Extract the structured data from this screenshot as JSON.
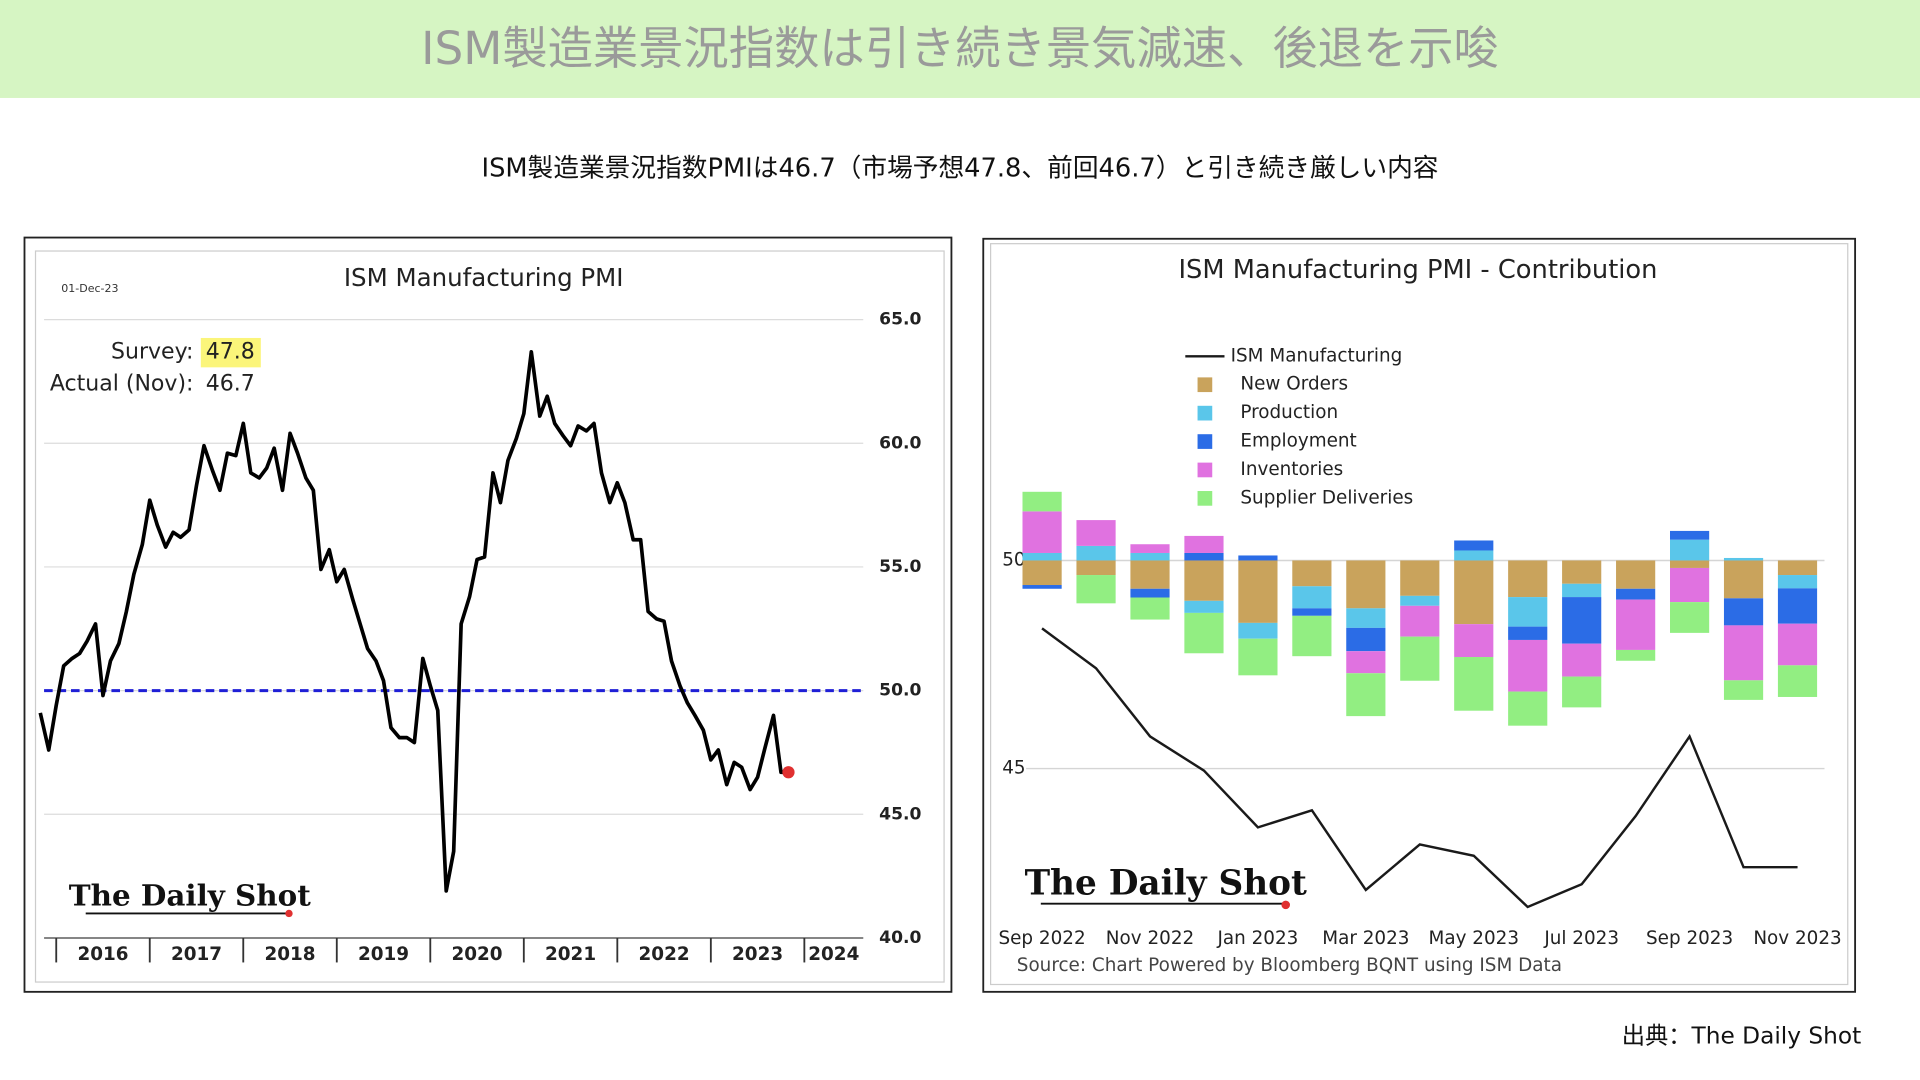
{
  "header": {
    "title": "ISM製造業景況指数は引き続き景気減速、後退を示唆",
    "subtitle": "ISM製造業景況指数PMIは46.7（市場予想47.8、前回46.7）と引き続き厳しい内容"
  },
  "footer": {
    "source": "出典：The Daily Shot"
  },
  "chart_data": [
    {
      "type": "line",
      "title": "ISM Manufacturing PMI",
      "date": "01-Dec-23",
      "logo": "The Daily Shot",
      "annotations": {
        "survey_label": "Survey:",
        "survey_value": 47.8,
        "actual_label": "Actual (Nov):",
        "actual_value": 46.7
      },
      "xlim": [
        2015.87,
        2024.63
      ],
      "xticks": [
        2016,
        2017,
        2018,
        2019,
        2020,
        2021,
        2022,
        2023,
        2024
      ],
      "ylim": [
        40,
        65
      ],
      "yticks": [
        {
          "value": 40,
          "label": "40.0"
        },
        {
          "value": 45,
          "label": "45.0"
        },
        {
          "value": 50,
          "label": "50.0"
        },
        {
          "value": 55,
          "label": "55.0"
        },
        {
          "value": 60,
          "label": "60.0"
        },
        {
          "value": 65,
          "label": "65.0"
        }
      ],
      "grid": true,
      "reference_line": {
        "value": 50,
        "color": "#1f1fd6"
      },
      "marker_color": "#e03030",
      "x": [
        2015.83,
        2015.92,
        2016.0,
        2016.08,
        2016.17,
        2016.25,
        2016.33,
        2016.42,
        2016.5,
        2016.58,
        2016.67,
        2016.75,
        2016.83,
        2016.92,
        2017.0,
        2017.08,
        2017.17,
        2017.25,
        2017.33,
        2017.42,
        2017.5,
        2017.58,
        2017.67,
        2017.75,
        2017.83,
        2017.92,
        2018.0,
        2018.08,
        2018.17,
        2018.25,
        2018.33,
        2018.42,
        2018.5,
        2018.58,
        2018.67,
        2018.75,
        2018.83,
        2018.92,
        2019.0,
        2019.08,
        2019.17,
        2019.25,
        2019.33,
        2019.42,
        2019.5,
        2019.58,
        2019.67,
        2019.75,
        2019.83,
        2019.92,
        2020.0,
        2020.08,
        2020.17,
        2020.25,
        2020.33,
        2020.42,
        2020.5,
        2020.58,
        2020.67,
        2020.75,
        2020.83,
        2020.92,
        2021.0,
        2021.08,
        2021.17,
        2021.25,
        2021.33,
        2021.42,
        2021.5,
        2021.58,
        2021.67,
        2021.75,
        2021.83,
        2021.92,
        2022.0,
        2022.08,
        2022.17,
        2022.25,
        2022.33,
        2022.42,
        2022.5,
        2022.58,
        2022.67,
        2022.75,
        2022.83,
        2022.92,
        2023.0,
        2023.08,
        2023.17,
        2023.25,
        2023.33,
        2023.42,
        2023.5,
        2023.58,
        2023.67,
        2023.75,
        2023.83
      ],
      "series": [
        {
          "color": "#000000",
          "values": [
            49.1,
            47.6,
            49.4,
            51.0,
            51.3,
            51.5,
            52.0,
            52.7,
            49.8,
            51.2,
            51.9,
            53.2,
            54.7,
            55.9,
            57.7,
            56.7,
            55.8,
            56.4,
            56.2,
            56.5,
            58.3,
            59.9,
            58.9,
            58.1,
            59.6,
            59.5,
            60.8,
            58.8,
            58.6,
            59.0,
            59.8,
            58.1,
            60.4,
            59.6,
            58.6,
            58.1,
            54.9,
            55.7,
            54.4,
            54.9,
            53.7,
            52.7,
            51.7,
            51.2,
            50.4,
            48.5,
            48.1,
            48.1,
            47.9,
            51.3,
            50.2,
            49.2,
            41.9,
            43.5,
            52.7,
            53.8,
            55.3,
            55.4,
            58.8,
            57.6,
            59.3,
            60.2,
            61.2,
            63.7,
            61.1,
            61.9,
            60.8,
            60.3,
            59.9,
            60.7,
            60.5,
            60.8,
            58.8,
            57.6,
            58.4,
            57.6,
            56.1,
            56.1,
            53.2,
            52.9,
            52.8,
            51.2,
            50.2,
            49.5,
            49.0,
            48.4,
            47.2,
            47.6,
            46.2,
            47.1,
            46.9,
            46.0,
            46.5,
            47.7,
            49.0,
            46.7,
            46.7
          ]
        }
      ]
    },
    {
      "type": "bar",
      "stacked": true,
      "baseline": 50,
      "title": "ISM Manufacturing PMI - Contribution",
      "logo": "The Daily Shot",
      "source": "Source: Chart Powered by Bloomberg BQNT using ISM Data",
      "legend": "upper center",
      "categories": [
        "Sep 2022",
        null,
        "Nov 2022",
        null,
        "Jan 2023",
        null,
        "Mar 2023",
        null,
        "May 2023",
        null,
        "Jul 2023",
        null,
        "Sep 2023",
        null,
        "Nov 2023"
      ],
      "ylim": [
        41.4,
        56.7
      ],
      "yticks": [
        45,
        50
      ],
      "y2lim": [
        45.8,
        57.0
      ],
      "grid": true,
      "series": [
        {
          "name": "ISM Manufacturing",
          "type": "line",
          "axis": "y2",
          "color": "#1a1a1a",
          "values": [
            50.9,
            50.2,
            49.0,
            48.4,
            47.4,
            47.7,
            46.3,
            47.1,
            46.9,
            46.0,
            46.4,
            47.6,
            49.0,
            46.7,
            46.7
          ]
        },
        {
          "name": "New Orders",
          "color": "#c9a35c",
          "values": [
            -0.59,
            -0.35,
            -0.68,
            -0.97,
            -1.5,
            -0.62,
            -1.15,
            -0.85,
            -1.53,
            -0.88,
            -0.56,
            -0.68,
            -0.18,
            -0.91,
            -0.35
          ]
        },
        {
          "name": "Production",
          "color": "#5ac6ea",
          "values": [
            0.18,
            0.35,
            0.18,
            -0.29,
            -0.38,
            -0.53,
            -0.47,
            -0.24,
            0.24,
            -0.71,
            -0.32,
            0,
            0.5,
            0.06,
            -0.32
          ]
        },
        {
          "name": "Employment",
          "color": "#2b6ce6",
          "values": [
            -0.09,
            0,
            -0.21,
            0.18,
            0.12,
            -0.18,
            -0.56,
            0,
            0.24,
            -0.32,
            -1.12,
            -0.26,
            0.21,
            -0.65,
            -0.85
          ]
        },
        {
          "name": "Inventories",
          "color": "#e072e0",
          "values": [
            1.0,
            0.62,
            0.21,
            0.41,
            0,
            0,
            -0.53,
            -0.74,
            -0.79,
            -1.24,
            -0.79,
            -1.21,
            -0.82,
            -1.32,
            -1.0
          ]
        },
        {
          "name": "Supplier Deliveries",
          "color": "#92ee82",
          "values": [
            0.47,
            -0.68,
            -0.53,
            -0.97,
            -0.88,
            -0.97,
            -1.03,
            -1.06,
            -1.29,
            -0.82,
            -0.74,
            -0.26,
            -0.74,
            -0.47,
            -0.76
          ]
        }
      ]
    }
  ]
}
